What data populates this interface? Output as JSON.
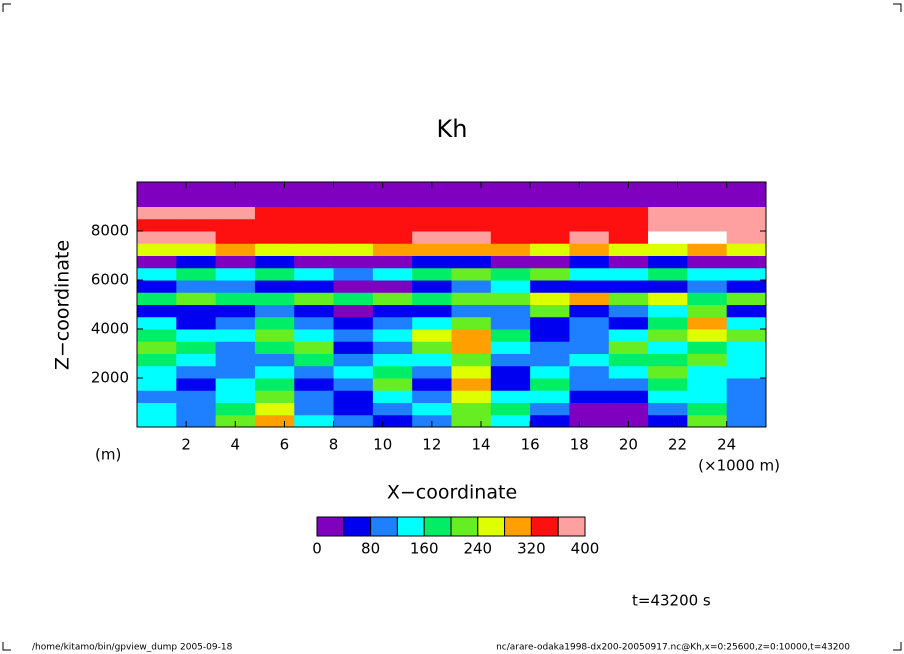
{
  "chart_data": {
    "type": "heatmap",
    "title": "Kh",
    "xlabel": "X−coordinate",
    "ylabel": "Z−coordinate",
    "x_unit": "(×1000 m)",
    "y_unit": "(m)",
    "time_label": "t=43200 s",
    "footer_left": "/home/kitamo/bin/gpview_dump  2005-09-18",
    "footer_right": "nc/arare-odaka1998-dx200-20050917.nc@Kh,x=0:25600,z=0:10000,t=43200",
    "xlim": [
      0,
      25.6
    ],
    "ylim": [
      0,
      10000
    ],
    "xticks": [
      2,
      4,
      6,
      8,
      10,
      12,
      14,
      16,
      18,
      20,
      22,
      24
    ],
    "yticks": [
      2000,
      4000,
      6000,
      8000
    ],
    "x": [
      0.8,
      2.4,
      4.0,
      5.6,
      7.2,
      8.8,
      10.4,
      12.0,
      13.6,
      15.2,
      16.8,
      18.4,
      20.0,
      21.6,
      23.2,
      24.8
    ],
    "z": [
      250,
      750,
      1250,
      1750,
      2250,
      2750,
      3250,
      3750,
      4250,
      4750,
      5250,
      5750,
      6250,
      6750,
      7250,
      7750,
      8250,
      8750,
      9250,
      9750
    ],
    "values": [
      [
        120,
        100,
        200,
        300,
        140,
        100,
        60,
        100,
        200,
        120,
        60,
        30,
        20,
        60,
        200,
        80
      ],
      [
        140,
        100,
        160,
        240,
        100,
        60,
        80,
        120,
        200,
        160,
        80,
        20,
        30,
        80,
        160,
        100
      ],
      [
        100,
        80,
        140,
        200,
        80,
        40,
        140,
        100,
        240,
        120,
        120,
        40,
        60,
        120,
        140,
        80
      ],
      [
        120,
        60,
        120,
        160,
        60,
        80,
        200,
        60,
        280,
        60,
        160,
        80,
        100,
        160,
        120,
        100
      ],
      [
        140,
        80,
        100,
        120,
        100,
        120,
        160,
        80,
        240,
        40,
        120,
        100,
        120,
        200,
        140,
        120
      ],
      [
        160,
        120,
        80,
        100,
        160,
        80,
        120,
        140,
        200,
        80,
        100,
        120,
        160,
        160,
        200,
        140
      ],
      [
        200,
        160,
        100,
        160,
        200,
        60,
        100,
        200,
        280,
        120,
        80,
        100,
        200,
        120,
        160,
        120
      ],
      [
        160,
        120,
        120,
        200,
        120,
        100,
        140,
        240,
        300,
        160,
        60,
        80,
        120,
        200,
        240,
        200
      ],
      [
        120,
        60,
        80,
        160,
        80,
        60,
        100,
        120,
        200,
        100,
        60,
        100,
        60,
        160,
        280,
        120
      ],
      [
        60,
        40,
        60,
        100,
        40,
        20,
        40,
        60,
        100,
        80,
        200,
        40,
        80,
        120,
        200,
        60
      ],
      [
        160,
        200,
        180,
        160,
        200,
        160,
        200,
        180,
        220,
        200,
        240,
        300,
        200,
        240,
        160,
        200
      ],
      [
        60,
        100,
        80,
        60,
        40,
        20,
        30,
        60,
        80,
        120,
        60,
        40,
        60,
        40,
        80,
        60
      ],
      [
        140,
        180,
        120,
        160,
        120,
        100,
        140,
        160,
        200,
        160,
        200,
        140,
        120,
        160,
        120,
        140
      ],
      [
        30,
        40,
        30,
        40,
        20,
        20,
        30,
        40,
        60,
        20,
        30,
        40,
        30,
        40,
        20,
        30
      ],
      [
        240,
        260,
        280,
        260,
        240,
        250,
        280,
        300,
        300,
        280,
        260,
        280,
        270,
        260,
        280,
        260
      ],
      [
        360,
        380,
        340,
        330,
        340,
        330,
        340,
        360,
        380,
        340,
        330,
        360,
        340,
        400,
        420,
        380
      ],
      [
        340,
        340,
        330,
        330,
        340,
        330,
        330,
        340,
        350,
        340,
        330,
        330,
        340,
        360,
        380,
        360
      ],
      [
        380,
        380,
        360,
        340,
        340,
        340,
        340,
        340,
        350,
        340,
        340,
        340,
        340,
        380,
        380,
        380
      ],
      [
        20,
        20,
        20,
        20,
        20,
        20,
        20,
        20,
        20,
        20,
        20,
        20,
        20,
        20,
        20,
        20
      ],
      [
        20,
        20,
        20,
        20,
        20,
        20,
        20,
        20,
        20,
        20,
        20,
        20,
        20,
        20,
        20,
        20
      ]
    ],
    "colorbar": {
      "levels": [
        0,
        40,
        80,
        120,
        160,
        200,
        240,
        280,
        320,
        360,
        400
      ],
      "colors": [
        "#7f00bf",
        "#0000f0",
        "#1e7fff",
        "#00ffff",
        "#00ee66",
        "#66ee22",
        "#ddff00",
        "#ffa000",
        "#ff1010",
        "#ffa0a0"
      ],
      "above_color": "#ffffff",
      "ticks": [
        0,
        80,
        160,
        240,
        320,
        400
      ]
    }
  }
}
